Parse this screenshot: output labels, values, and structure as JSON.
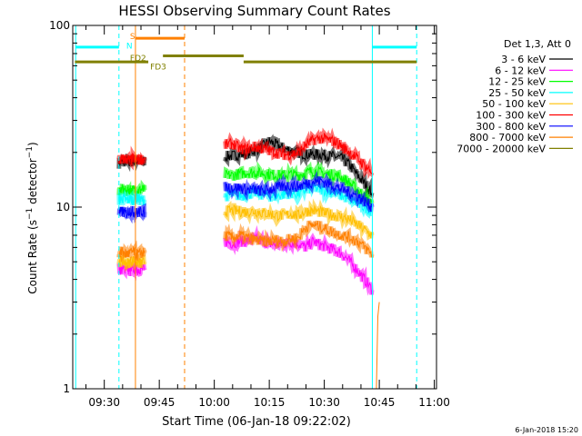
{
  "chart_data": {
    "type": "line",
    "title": "HESSI Observing Summary Count Rates",
    "xlabel": "Start Time (06-Jan-18 09:22:02)",
    "ylabel": "Count Rate (s⁻¹ detector⁻¹)",
    "ylabel_parts": {
      "main": "Count Rate (s",
      "sup1": "−1",
      "mid": " detector",
      "sup2": "−1",
      "end": ")"
    },
    "y_scale": "log",
    "ylim": [
      1,
      100
    ],
    "yticks": [
      1,
      10,
      100
    ],
    "ytick_labels": [
      "1",
      "10",
      "100"
    ],
    "xlim_minutes": [
      -0.6,
      98.6
    ],
    "xticks": [
      {
        "minute": 8,
        "label": "09:30"
      },
      {
        "minute": 23,
        "label": "09:45"
      },
      {
        "minute": 38,
        "label": "10:00"
      },
      {
        "minute": 53,
        "label": "10:15"
      },
      {
        "minute": 68,
        "label": "10:30"
      },
      {
        "minute": 83,
        "label": "10:45"
      },
      {
        "minute": 98,
        "label": "11:00"
      }
    ],
    "legend_title": "Det 1,3, Att 0",
    "legend_placement": "right",
    "series": [
      {
        "name": "3 - 6 keV",
        "color": "#000000",
        "segments": [
          {
            "x": [
              12,
              13,
              14,
              15,
              16,
              17,
              18,
              19
            ],
            "y": [
              17.5,
              17.8,
              18,
              17.6,
              18.2,
              17.9,
              17.7,
              18
            ]
          },
          {
            "x": [
              41,
              43,
              45,
              47,
              49,
              51,
              53,
              55,
              57,
              59,
              61,
              63,
              65,
              67,
              69,
              71,
              73,
              75,
              77,
              79,
              81
            ],
            "y": [
              19,
              19.2,
              19.5,
              19.8,
              20.5,
              21.5,
              23,
              22,
              21,
              20.5,
              20,
              19.5,
              19.5,
              19.5,
              19.2,
              19,
              18.5,
              17,
              15,
              13.5,
              12
            ]
          }
        ]
      },
      {
        "name": "6 - 12 keV",
        "color": "#ff00ff",
        "segments": [
          {
            "x": [
              12,
              13,
              14,
              15,
              16,
              17,
              18,
              19
            ],
            "y": [
              4.6,
              4.5,
              4.7,
              4.4,
              4.6,
              4.5,
              4.6,
              4.5
            ]
          },
          {
            "x": [
              41,
              43,
              45,
              47,
              49,
              51,
              53,
              55,
              57,
              59,
              61,
              63,
              65,
              67,
              69,
              71,
              73,
              75,
              77,
              79,
              81
            ],
            "y": [
              6.5,
              6.3,
              6.5,
              6.5,
              6.7,
              6.5,
              6.3,
              6.2,
              6.3,
              6.4,
              6.3,
              6.0,
              6.5,
              6.2,
              6.0,
              5.8,
              5.5,
              5.0,
              4.5,
              4.0,
              3.5
            ]
          }
        ]
      },
      {
        "name": "12 - 25 keV",
        "color": "#00ff00",
        "segments": [
          {
            "x": [
              12,
              13,
              14,
              15,
              16,
              17,
              18,
              19
            ],
            "y": [
              12.3,
              12.5,
              12.2,
              12.6,
              12.4,
              12.3,
              12.5,
              12.4
            ]
          },
          {
            "x": [
              41,
              43,
              45,
              47,
              49,
              51,
              53,
              55,
              57,
              59,
              61,
              63,
              65,
              67,
              69,
              71,
              73,
              75,
              77,
              79,
              81
            ],
            "y": [
              15,
              15,
              15.3,
              15.5,
              15.5,
              15.4,
              15.2,
              15,
              15,
              15.2,
              15,
              15.5,
              15.8,
              15.5,
              15.2,
              15,
              14.5,
              13.5,
              12.5,
              11.5,
              10.5
            ]
          }
        ]
      },
      {
        "name": "25 - 50 keV",
        "color": "#00ffff",
        "segments": [
          {
            "x": [
              12,
              13,
              14,
              15,
              16,
              17,
              18,
              19
            ],
            "y": [
              11,
              11.2,
              10.9,
              11.1,
              11,
              11.2,
              10.9,
              11
            ]
          },
          {
            "x": [
              41,
              43,
              45,
              47,
              49,
              51,
              53,
              55,
              57,
              59,
              61,
              63,
              65,
              67,
              69,
              71,
              73,
              75,
              77,
              79,
              81
            ],
            "y": [
              11.5,
              11.8,
              11.5,
              11.8,
              12,
              11.8,
              11.5,
              11.5,
              11.8,
              12,
              11.8,
              12.5,
              12.8,
              12.5,
              12.3,
              12,
              11.5,
              11,
              10.5,
              10,
              9.5
            ]
          }
        ]
      },
      {
        "name": "50 - 100 keV",
        "color": "#ffbf00",
        "segments": [
          {
            "x": [
              12,
              13,
              14,
              15,
              16,
              17,
              18,
              19
            ],
            "y": [
              5.0,
              5.1,
              4.9,
              5.0,
              5.1,
              5.0,
              4.9,
              5.0
            ]
          },
          {
            "x": [
              41,
              43,
              45,
              47,
              49,
              51,
              53,
              55,
              57,
              59,
              61,
              63,
              65,
              67,
              69,
              71,
              73,
              75,
              77,
              79,
              81
            ],
            "y": [
              9.5,
              9.6,
              9.5,
              9.4,
              9.5,
              9.3,
              9.2,
              9.0,
              9.0,
              9.2,
              9.0,
              9.5,
              9.6,
              9.4,
              9.2,
              9.0,
              8.8,
              8.5,
              8.0,
              7.5,
              7.0
            ]
          }
        ]
      },
      {
        "name": "100 - 300 keV",
        "color": "#ff0000",
        "segments": [
          {
            "x": [
              12,
              13,
              14,
              15,
              16,
              17,
              18,
              19
            ],
            "y": [
              18,
              18.3,
              18.5,
              18.1,
              18.6,
              18.2,
              18.4,
              18.2
            ]
          },
          {
            "x": [
              41,
              43,
              45,
              47,
              49,
              51,
              53,
              55,
              57,
              59,
              61,
              63,
              65,
              67,
              69,
              71,
              73,
              75,
              77,
              79,
              81
            ],
            "y": [
              22,
              22.5,
              21,
              21,
              21.5,
              21,
              20.5,
              20,
              19.5,
              19.5,
              20,
              22,
              23.5,
              24,
              23.5,
              23,
              21.5,
              20,
              18.5,
              17,
              15.5
            ]
          }
        ]
      },
      {
        "name": "300 - 800 keV",
        "color": "#0000ff",
        "segments": [
          {
            "x": [
              12,
              13,
              14,
              15,
              16,
              17,
              18,
              19
            ],
            "y": [
              9.3,
              9.5,
              9.2,
              9.6,
              9.4,
              9.3,
              9.5,
              9.4
            ]
          },
          {
            "x": [
              41,
              43,
              45,
              47,
              49,
              51,
              53,
              55,
              57,
              59,
              61,
              63,
              65,
              67,
              69,
              71,
              73,
              75,
              77,
              79,
              81
            ],
            "y": [
              13,
              12.8,
              12.8,
              12.5,
              12.5,
              12.3,
              12.5,
              12.8,
              13,
              13.2,
              13,
              13.5,
              13.8,
              14,
              13.5,
              13,
              12.5,
              12,
              11.5,
              10.8,
              10
            ]
          }
        ]
      },
      {
        "name": "800 - 7000 keV",
        "color": "#ff8000",
        "segments": [
          {
            "x": [
              12,
              13,
              14,
              15,
              16,
              17,
              18,
              19
            ],
            "y": [
              5.6,
              5.7,
              5.5,
              5.6,
              5.7,
              5.5,
              5.6,
              5.6
            ]
          },
          {
            "x": [
              41,
              43,
              45,
              47,
              49,
              51,
              53,
              55,
              57,
              59,
              61,
              63,
              65,
              67,
              69,
              71,
              73,
              75,
              77,
              79,
              81
            ],
            "y": [
              7.0,
              6.8,
              7.0,
              6.8,
              6.6,
              6.5,
              6.5,
              6.6,
              6.5,
              6.7,
              6.8,
              7.8,
              8.0,
              7.8,
              7.5,
              7.2,
              7.0,
              6.8,
              6.5,
              6.0,
              5.5
            ]
          }
        ]
      },
      {
        "name": "7000 - 20000 keV",
        "color": "#808000",
        "segments": []
      }
    ],
    "vertical_lines": [
      {
        "minute": 0.2,
        "color": "#00ffff",
        "style": "solid"
      },
      {
        "minute": 12.0,
        "color": "#00ffff",
        "style": "dashed"
      },
      {
        "minute": 16.5,
        "color": "#ff8000",
        "style": "solid"
      },
      {
        "minute": 29.9,
        "color": "#ff8000",
        "style": "dashed"
      },
      {
        "minute": 81.1,
        "color": "#00ffff",
        "style": "solid"
      },
      {
        "minute": 93.2,
        "color": "#00ffff",
        "style": "dashed"
      }
    ],
    "flag_bars": [
      {
        "label": "N",
        "color": "#00ffff",
        "y": 76,
        "from": 0.2,
        "to": 12.0,
        "label_at": 14.0,
        "label_y": 78
      },
      {
        "label": "",
        "color": "#00ffff",
        "y": 76,
        "from": 81.1,
        "to": 93.2
      },
      {
        "label": "S",
        "color": "#ff8000",
        "y": 85,
        "from": 16.5,
        "to": 29.9,
        "label_at": 15.0,
        "label_y": 88
      },
      {
        "label": "FD2",
        "color": "#808000",
        "y": 68,
        "from": 24.0,
        "to": 46.0,
        "label_at": 15.0,
        "label_y": 67
      },
      {
        "label": "FD3",
        "color": "#808000",
        "y": 63,
        "from": 0.0,
        "to": 20.0,
        "label_at": 20.5,
        "label_y": 60
      },
      {
        "label": "",
        "color": "#808000",
        "y": 63,
        "from": 46.0,
        "to": 93.2
      }
    ],
    "extra_trace": {
      "color": "#ff8000",
      "x": [
        82.2,
        82.6,
        83.0
      ],
      "y": [
        1.0,
        2.5,
        3.0
      ]
    }
  },
  "footer_timestamp": "6-Jan-2018 15:20"
}
